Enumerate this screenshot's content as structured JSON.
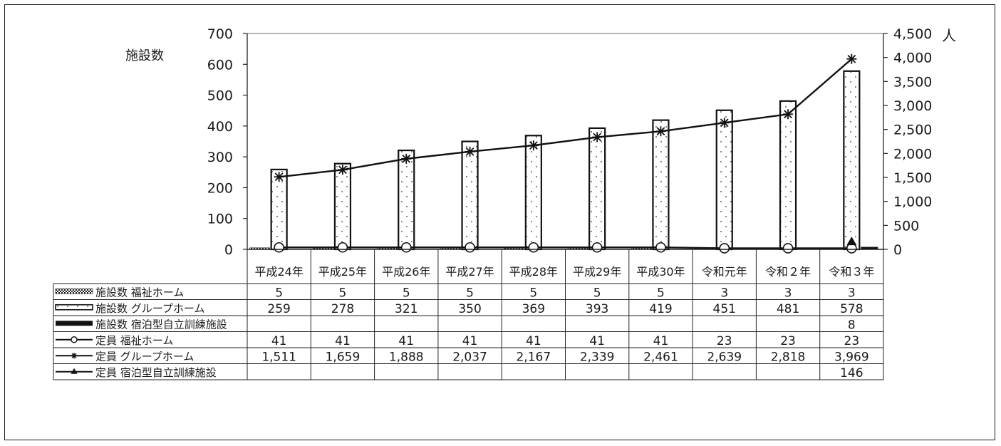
{
  "chart_data": {
    "type": "bar",
    "y_left_label": "施設数",
    "y_right_label": "人",
    "y_left_ticks": [
      "0",
      "100",
      "200",
      "300",
      "400",
      "500",
      "600",
      "700"
    ],
    "y_right_ticks": [
      "0",
      "500",
      "1,000",
      "1,500",
      "2,000",
      "2,500",
      "3,000",
      "3,500",
      "4,000",
      "4,500"
    ],
    "ylim_left": [
      0,
      700
    ],
    "ylim_right": [
      0,
      4500
    ],
    "categories": [
      "平成24年",
      "平成25年",
      "平成26年",
      "平成27年",
      "平成28年",
      "平成29年",
      "平成30年",
      "令和元年",
      "令和２年",
      "令和３年"
    ],
    "series": [
      {
        "name": "施設数 福祉ホーム",
        "kind": "bar",
        "axis": "left",
        "style": "checker",
        "values": [
          5,
          5,
          5,
          5,
          5,
          5,
          5,
          3,
          3,
          3
        ],
        "labels": [
          "5",
          "5",
          "5",
          "5",
          "5",
          "5",
          "5",
          "3",
          "3",
          "3"
        ]
      },
      {
        "name": "施設数 グループホーム",
        "kind": "bar",
        "axis": "left",
        "style": "dotted",
        "values": [
          259,
          278,
          321,
          350,
          369,
          393,
          419,
          451,
          481,
          578
        ],
        "labels": [
          "259",
          "278",
          "321",
          "350",
          "369",
          "393",
          "419",
          "451",
          "481",
          "578"
        ]
      },
      {
        "name": "施設数 宿泊型自立訓練施設",
        "kind": "bar",
        "axis": "left",
        "style": "solid",
        "values": [
          null,
          null,
          null,
          null,
          null,
          null,
          null,
          null,
          null,
          8
        ],
        "labels": [
          "",
          "",
          "",
          "",
          "",
          "",
          "",
          "",
          "",
          "8"
        ]
      },
      {
        "name": "定員 福祉ホーム",
        "kind": "line",
        "axis": "right",
        "marker": "circle",
        "values": [
          41,
          41,
          41,
          41,
          41,
          41,
          41,
          23,
          23,
          23
        ],
        "labels": [
          "41",
          "41",
          "41",
          "41",
          "41",
          "41",
          "41",
          "23",
          "23",
          "23"
        ]
      },
      {
        "name": "定員 グループホーム",
        "kind": "line",
        "axis": "right",
        "marker": "star",
        "values": [
          1511,
          1659,
          1888,
          2037,
          2167,
          2339,
          2461,
          2639,
          2818,
          3969
        ],
        "labels": [
          "1,511",
          "1,659",
          "1,888",
          "2,037",
          "2,167",
          "2,339",
          "2,461",
          "2,639",
          "2,818",
          "3,969"
        ]
      },
      {
        "name": "定員 宿泊型自立訓練施設",
        "kind": "line",
        "axis": "right",
        "marker": "triangle",
        "values": [
          null,
          null,
          null,
          null,
          null,
          null,
          null,
          null,
          null,
          146
        ],
        "labels": [
          "",
          "",
          "",
          "",
          "",
          "",
          "",
          "",
          "",
          "146"
        ]
      }
    ],
    "legend": "data-table-below"
  }
}
